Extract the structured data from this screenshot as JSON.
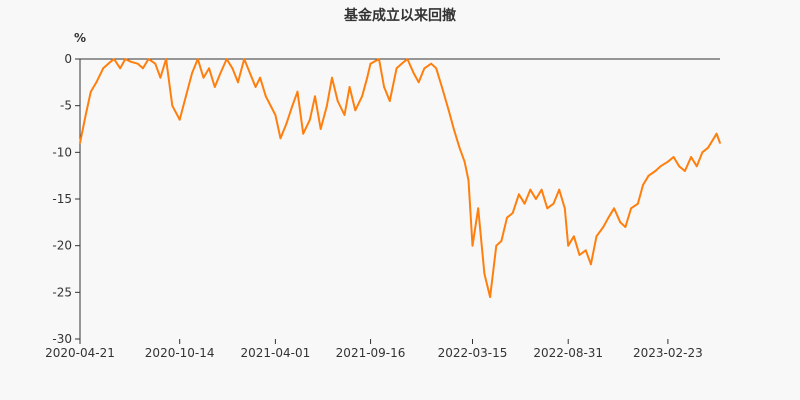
{
  "chart_data": {
    "type": "line",
    "title": "基金成立以来回撤",
    "ylabel": "%",
    "xlabel": "",
    "ylim": [
      -30,
      0
    ],
    "yticks": [
      0,
      -5,
      -10,
      -15,
      -20,
      -25,
      -30
    ],
    "xtick_labels": [
      "2020-04-21",
      "2020-10-14",
      "2021-04-01",
      "2021-09-16",
      "2022-03-15",
      "2022-08-31",
      "2023-02-23"
    ],
    "x_range": [
      "2020-04-21",
      "2023-05-26"
    ],
    "grid": false,
    "legend": "none",
    "colors": {
      "line": "#ff7f0e",
      "axis": "#333333"
    },
    "series": [
      {
        "x": [
          "2020-04-21",
          "2020-05-01",
          "2020-05-10",
          "2020-05-20",
          "2020-06-01",
          "2020-06-10",
          "2020-06-20",
          "2020-07-01",
          "2020-07-10",
          "2020-07-20",
          "2020-08-01",
          "2020-08-10",
          "2020-08-20",
          "2020-09-01",
          "2020-09-10",
          "2020-09-20",
          "2020-10-01",
          "2020-10-14",
          "2020-10-25",
          "2020-11-05",
          "2020-11-15",
          "2020-11-25",
          "2020-12-05",
          "2020-12-15",
          "2020-12-25",
          "2021-01-05",
          "2021-01-15",
          "2021-01-25",
          "2021-02-05",
          "2021-02-15",
          "2021-02-25",
          "2021-03-05",
          "2021-03-15",
          "2021-04-01",
          "2021-04-10",
          "2021-04-20",
          "2021-05-01",
          "2021-05-10",
          "2021-05-20",
          "2021-06-01",
          "2021-06-10",
          "2021-06-20",
          "2021-07-01",
          "2021-07-10",
          "2021-07-20",
          "2021-08-01",
          "2021-08-10",
          "2021-08-20",
          "2021-09-01",
          "2021-09-10",
          "2021-09-16",
          "2021-10-01",
          "2021-10-10",
          "2021-10-20",
          "2021-11-01",
          "2021-11-10",
          "2021-11-20",
          "2021-12-01",
          "2021-12-10",
          "2021-12-20",
          "2022-01-01",
          "2022-01-10",
          "2022-01-20",
          "2022-02-01",
          "2022-02-10",
          "2022-02-20",
          "2022-03-01",
          "2022-03-08",
          "2022-03-15",
          "2022-03-25",
          "2022-04-05",
          "2022-04-15",
          "2022-04-26",
          "2022-05-05",
          "2022-05-15",
          "2022-05-25",
          "2022-06-05",
          "2022-06-15",
          "2022-06-25",
          "2022-07-05",
          "2022-07-15",
          "2022-07-25",
          "2022-08-05",
          "2022-08-15",
          "2022-08-25",
          "2022-08-31",
          "2022-09-10",
          "2022-09-20",
          "2022-10-01",
          "2022-10-10",
          "2022-10-20",
          "2022-11-01",
          "2022-11-10",
          "2022-11-20",
          "2022-12-01",
          "2022-12-10",
          "2022-12-20",
          "2023-01-01",
          "2023-01-10",
          "2023-01-20",
          "2023-02-01",
          "2023-02-10",
          "2023-02-23",
          "2023-03-05",
          "2023-03-15",
          "2023-03-25",
          "2023-04-05",
          "2023-04-15",
          "2023-04-25",
          "2023-05-05",
          "2023-05-15",
          "2023-05-20",
          "2023-05-26"
        ],
        "y": [
          -9.0,
          -6.0,
          -3.5,
          -2.5,
          -1.0,
          -0.5,
          0,
          -1.0,
          0,
          -0.3,
          -0.5,
          -1.0,
          0,
          -0.5,
          -2.0,
          0,
          -5.0,
          -6.5,
          -4.0,
          -1.5,
          0,
          -2.0,
          -1.0,
          -3.0,
          -1.5,
          0,
          -1.0,
          -2.5,
          0,
          -1.5,
          -3.0,
          -2.0,
          -4.0,
          -6.0,
          -8.5,
          -7.0,
          -5.0,
          -3.5,
          -8.0,
          -6.5,
          -4.0,
          -7.5,
          -5.0,
          -2.0,
          -4.5,
          -6.0,
          -3.0,
          -5.5,
          -4.0,
          -2.0,
          -0.5,
          0,
          -3.0,
          -4.5,
          -1.0,
          -0.5,
          0,
          -1.5,
          -2.5,
          -1.0,
          -0.5,
          -1.0,
          -3.0,
          -5.5,
          -7.5,
          -9.5,
          -11.0,
          -13.0,
          -20.0,
          -16.0,
          -23.0,
          -25.5,
          -20.0,
          -19.5,
          -17.0,
          -16.5,
          -14.5,
          -15.5,
          -14.0,
          -15.0,
          -14.0,
          -16.0,
          -15.5,
          -14.0,
          -16.0,
          -20.0,
          -19.0,
          -21.0,
          -20.5,
          -22.0,
          -19.0,
          -18.0,
          -17.0,
          -16.0,
          -17.5,
          -18.0,
          -16.0,
          -15.5,
          -13.5,
          -12.5,
          -12.0,
          -11.5,
          -11.0,
          -10.5,
          -11.5,
          -12.0,
          -10.5,
          -11.5,
          -10.0,
          -9.5,
          -8.5,
          -8.0,
          -9.0
        ]
      }
    ]
  }
}
